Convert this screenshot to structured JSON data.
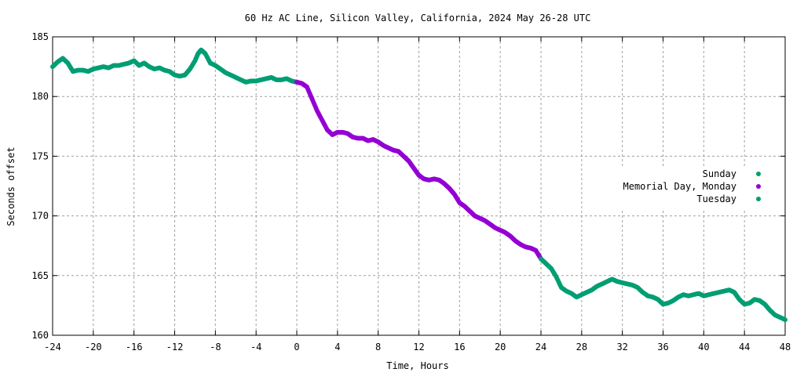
{
  "chart_data": {
    "type": "scatter",
    "title": "60 Hz AC Line, Silicon Valley, California, 2024 May 26-28 UTC",
    "xlabel": "Time, Hours",
    "ylabel": "Seconds offset",
    "xlim": [
      -24,
      48
    ],
    "ylim": [
      160,
      185
    ],
    "xticks": [
      -24,
      -20,
      -16,
      -12,
      -8,
      -4,
      0,
      4,
      8,
      12,
      16,
      20,
      24,
      28,
      32,
      36,
      40,
      44,
      48
    ],
    "yticks": [
      160,
      165,
      170,
      175,
      180,
      185
    ],
    "grid": true,
    "legend_position": "right",
    "series": [
      {
        "name": "Sunday",
        "color": "#009e73",
        "points": [
          [
            -24,
            182.5
          ],
          [
            -23.5,
            182.9
          ],
          [
            -23,
            183.2
          ],
          [
            -22.5,
            182.8
          ],
          [
            -22,
            182.1
          ],
          [
            -21.5,
            182.2
          ],
          [
            -21,
            182.2
          ],
          [
            -20.5,
            182.1
          ],
          [
            -20,
            182.3
          ],
          [
            -19.5,
            182.4
          ],
          [
            -19,
            182.5
          ],
          [
            -18.5,
            182.4
          ],
          [
            -18,
            182.6
          ],
          [
            -17.5,
            182.6
          ],
          [
            -17,
            182.7
          ],
          [
            -16.5,
            182.8
          ],
          [
            -16,
            183.0
          ],
          [
            -15.5,
            182.6
          ],
          [
            -15,
            182.8
          ],
          [
            -14.5,
            182.5
          ],
          [
            -14,
            182.3
          ],
          [
            -13.5,
            182.4
          ],
          [
            -13,
            182.2
          ],
          [
            -12.5,
            182.1
          ],
          [
            -12,
            181.8
          ],
          [
            -11.5,
            181.7
          ],
          [
            -11,
            181.8
          ],
          [
            -10.5,
            182.3
          ],
          [
            -10,
            183.0
          ],
          [
            -9.7,
            183.6
          ],
          [
            -9.4,
            183.9
          ],
          [
            -9,
            183.6
          ],
          [
            -8.5,
            182.8
          ],
          [
            -8,
            182.6
          ],
          [
            -7.5,
            182.3
          ],
          [
            -7,
            182.0
          ],
          [
            -6.5,
            181.8
          ],
          [
            -6,
            181.6
          ],
          [
            -5.5,
            181.4
          ],
          [
            -5,
            181.2
          ],
          [
            -4.5,
            181.3
          ],
          [
            -4,
            181.3
          ],
          [
            -3.5,
            181.4
          ],
          [
            -3,
            181.5
          ],
          [
            -2.5,
            181.6
          ],
          [
            -2,
            181.4
          ],
          [
            -1.5,
            181.4
          ],
          [
            -1,
            181.5
          ],
          [
            -0.5,
            181.3
          ],
          [
            0,
            181.2
          ]
        ]
      },
      {
        "name": "Memorial Day, Monday",
        "color": "#9400d3",
        "points": [
          [
            0,
            181.2
          ],
          [
            0.5,
            181.1
          ],
          [
            1,
            180.8
          ],
          [
            1.5,
            179.8
          ],
          [
            2,
            178.8
          ],
          [
            2.5,
            178.0
          ],
          [
            3,
            177.2
          ],
          [
            3.5,
            176.8
          ],
          [
            4,
            177.0
          ],
          [
            4.5,
            177.0
          ],
          [
            5,
            176.9
          ],
          [
            5.5,
            176.6
          ],
          [
            6,
            176.5
          ],
          [
            6.5,
            176.5
          ],
          [
            7,
            176.3
          ],
          [
            7.5,
            176.4
          ],
          [
            8,
            176.2
          ],
          [
            8.5,
            175.9
          ],
          [
            9,
            175.7
          ],
          [
            9.5,
            175.5
          ],
          [
            10,
            175.4
          ],
          [
            10.5,
            175.0
          ],
          [
            11,
            174.6
          ],
          [
            11.5,
            174.0
          ],
          [
            12,
            173.4
          ],
          [
            12.5,
            173.1
          ],
          [
            13,
            173.0
          ],
          [
            13.5,
            173.1
          ],
          [
            14,
            173.0
          ],
          [
            14.5,
            172.7
          ],
          [
            15,
            172.3
          ],
          [
            15.5,
            171.8
          ],
          [
            16,
            171.1
          ],
          [
            16.5,
            170.8
          ],
          [
            17,
            170.4
          ],
          [
            17.5,
            170.0
          ],
          [
            18,
            169.8
          ],
          [
            18.5,
            169.6
          ],
          [
            19,
            169.3
          ],
          [
            19.5,
            169.0
          ],
          [
            20,
            168.8
          ],
          [
            20.5,
            168.6
          ],
          [
            21,
            168.3
          ],
          [
            21.5,
            167.9
          ],
          [
            22,
            167.6
          ],
          [
            22.5,
            167.4
          ],
          [
            23,
            167.3
          ],
          [
            23.5,
            167.1
          ],
          [
            24,
            166.4
          ]
        ]
      },
      {
        "name": "Tuesday",
        "color": "#009e73",
        "points": [
          [
            24,
            166.4
          ],
          [
            24.5,
            166.0
          ],
          [
            25,
            165.6
          ],
          [
            25.5,
            164.9
          ],
          [
            26,
            164.0
          ],
          [
            26.5,
            163.7
          ],
          [
            27,
            163.5
          ],
          [
            27.5,
            163.2
          ],
          [
            28,
            163.4
          ],
          [
            28.5,
            163.6
          ],
          [
            29,
            163.8
          ],
          [
            29.5,
            164.1
          ],
          [
            30,
            164.3
          ],
          [
            30.5,
            164.5
          ],
          [
            31,
            164.7
          ],
          [
            31.5,
            164.5
          ],
          [
            32,
            164.4
          ],
          [
            32.5,
            164.3
          ],
          [
            33,
            164.2
          ],
          [
            33.5,
            164.0
          ],
          [
            34,
            163.6
          ],
          [
            34.5,
            163.3
          ],
          [
            35,
            163.2
          ],
          [
            35.5,
            163.0
          ],
          [
            36,
            162.6
          ],
          [
            36.5,
            162.7
          ],
          [
            37,
            162.9
          ],
          [
            37.5,
            163.2
          ],
          [
            38,
            163.4
          ],
          [
            38.5,
            163.3
          ],
          [
            39,
            163.4
          ],
          [
            39.5,
            163.5
          ],
          [
            40,
            163.3
          ],
          [
            40.5,
            163.4
          ],
          [
            41,
            163.5
          ],
          [
            41.5,
            163.6
          ],
          [
            42,
            163.7
          ],
          [
            42.5,
            163.8
          ],
          [
            43,
            163.6
          ],
          [
            43.5,
            163.0
          ],
          [
            44,
            162.6
          ],
          [
            44.5,
            162.7
          ],
          [
            45,
            163.0
          ],
          [
            45.5,
            162.9
          ],
          [
            46,
            162.6
          ],
          [
            46.5,
            162.1
          ],
          [
            47,
            161.7
          ],
          [
            47.5,
            161.5
          ],
          [
            48,
            161.3
          ]
        ]
      }
    ]
  }
}
